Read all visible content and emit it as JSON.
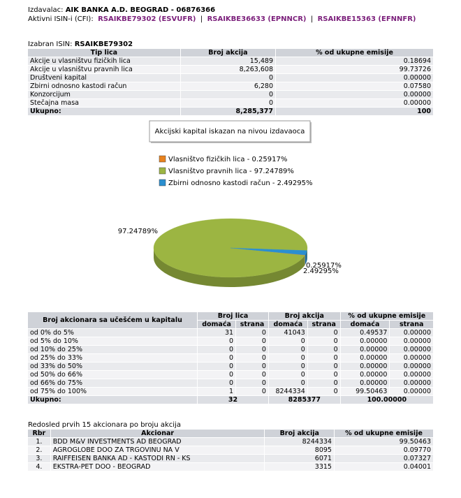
{
  "issuer": {
    "label": "Izdavalac:",
    "name": "AIK BANKA A.D. BEOGRAD - 06876366"
  },
  "isins": {
    "label": "Aktivni ISIN-i (CFI):",
    "separator": "|",
    "links": [
      "RSAIKBE79302 (ESVUFR)",
      "RSAIKBE36633 (EPNNCR)",
      "RSAIKBE15363 (EFNNFR)"
    ]
  },
  "selected": {
    "label": "Izabran ISIN:",
    "value": "RSAIKBE79302"
  },
  "ownership_table": {
    "headers": [
      "Tip lica",
      "Broj akcija",
      "% od ukupne emisije"
    ],
    "rows": [
      [
        "Akcije u vlasništvu fizičkih lica",
        "15,489",
        "0.18694"
      ],
      [
        "Akcije u vlasništvu pravnih lica",
        "8,263,608",
        "99.73726"
      ],
      [
        "Društveni kapital",
        "0",
        "0.00000"
      ],
      [
        "Zbirni odnosno kastodi račun",
        "6,280",
        "0.07580"
      ],
      [
        "Konzorcijum",
        "0",
        "0.00000"
      ],
      [
        "Stečajna masa",
        "0",
        "0.00000"
      ]
    ],
    "total": [
      "Ukupno:",
      "8,285,377",
      "100"
    ]
  },
  "chart_data": {
    "type": "pie",
    "title": "Akcijski kapital iskazan na nivou izdavaoca",
    "categories": [
      "Vlasništvo fizičkih lica - 0.25917%",
      "Vlasništvo pravnih lica - 97.24789%",
      "Zbirni odnosno kastodi račun - 2.49295%"
    ],
    "values": [
      0.25917,
      97.24789,
      2.49295
    ],
    "value_labels": [
      "0.25917%",
      "97.24789%",
      "2.49295%"
    ],
    "colors": [
      "#e8821e",
      "#9cb542",
      "#2a8fd0"
    ],
    "legend": "top"
  },
  "shareholding_table": {
    "title": "Broj akcionara sa učešćem u kapitalu",
    "groups": [
      "Broj lica",
      "Broj akcija",
      "% od ukupne emisije"
    ],
    "subheaders": [
      "domaća",
      "strana"
    ],
    "rows": [
      [
        "od 0% do 5%",
        "31",
        "0",
        "41043",
        "0",
        "0.49537",
        "0.00000"
      ],
      [
        "od 5% do 10%",
        "0",
        "0",
        "0",
        "0",
        "0.00000",
        "0.00000"
      ],
      [
        "od 10% do 25%",
        "0",
        "0",
        "0",
        "0",
        "0.00000",
        "0.00000"
      ],
      [
        "od 25% do 33%",
        "0",
        "0",
        "0",
        "0",
        "0.00000",
        "0.00000"
      ],
      [
        "od 33% do 50%",
        "0",
        "0",
        "0",
        "0",
        "0.00000",
        "0.00000"
      ],
      [
        "od 50% do 66%",
        "0",
        "0",
        "0",
        "0",
        "0.00000",
        "0.00000"
      ],
      [
        "od 66% do 75%",
        "0",
        "0",
        "0",
        "0",
        "0.00000",
        "0.00000"
      ],
      [
        "od 75% do 100%",
        "1",
        "0",
        "8244334",
        "0",
        "99.50463",
        "0.00000"
      ]
    ],
    "total": [
      "Ukupno:",
      "32",
      "8285377",
      "100.00000"
    ]
  },
  "top_table": {
    "caption": "Redosled prvih 15 akcionara po broju akcija",
    "headers": [
      "Rbr",
      "Akcionar",
      "Broj akcija",
      "% od ukupne emisije"
    ],
    "rows": [
      [
        "1.",
        "BDD M&V INVESTMENTS AD BEOGRAD",
        "8244334",
        "99.50463"
      ],
      [
        "2.",
        "AGROGLOBE DOO ZA TRGOVINU NA V",
        "8095",
        "0.09770"
      ],
      [
        "3.",
        "RAIFFEISEN BANKA AD - KASTODI RN - KS",
        "6071",
        "0.07327"
      ],
      [
        "4.",
        "EKSTRA-PET DOO - BEOGRAD",
        "3315",
        "0.04001"
      ]
    ]
  }
}
